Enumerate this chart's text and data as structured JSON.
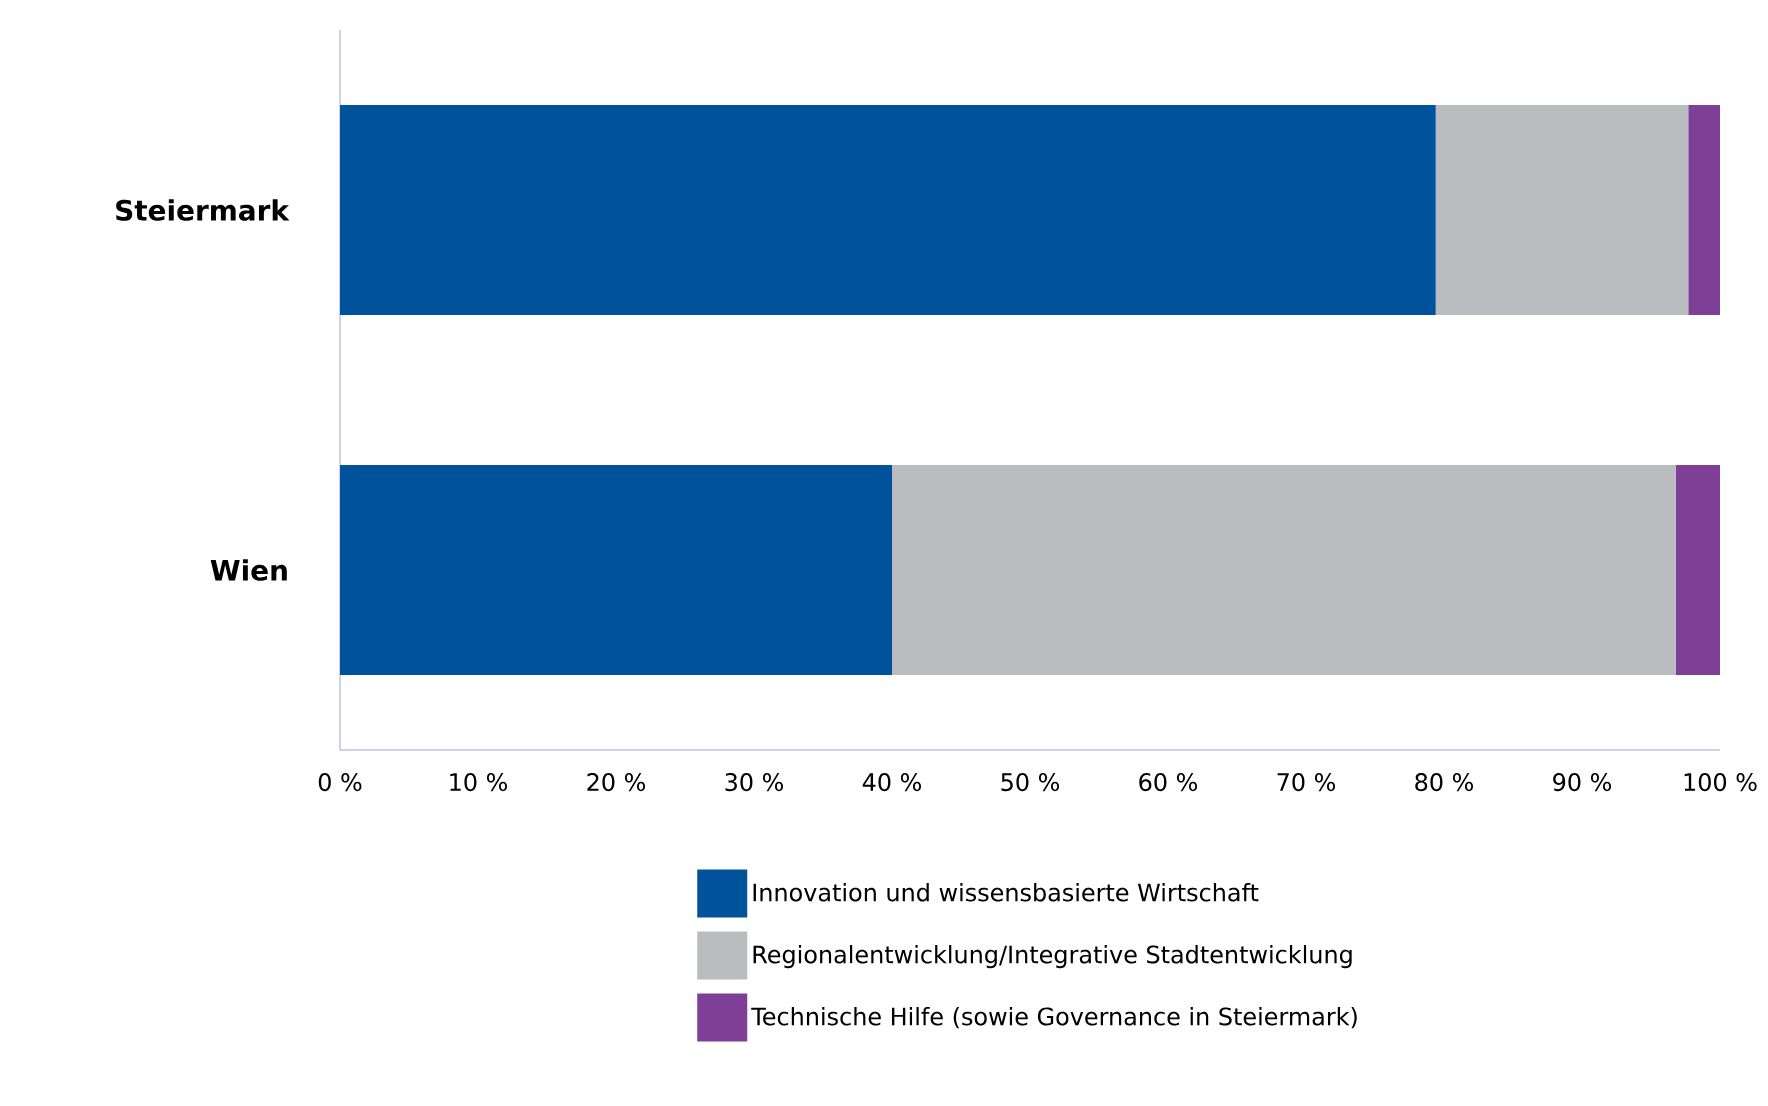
{
  "chart_data": {
    "type": "bar",
    "orientation": "horizontal",
    "stacked": true,
    "categories": [
      "Steiermark",
      "Wien"
    ],
    "series": [
      {
        "name": "Innovation und wissensbasierte Wirtschaft",
        "color": "#00529b",
        "values": [
          79.4,
          40.0
        ]
      },
      {
        "name": "Regionalentwicklung/Integrative Stadtentwicklung",
        "color": "#bbbcc0",
        "values": [
          18.3,
          56.8
        ]
      },
      {
        "name": "Technische Hilfe (sowie Governance in Steiermark)",
        "color": "#7d4096",
        "values": [
          2.3,
          3.2
        ]
      }
    ],
    "xlim": [
      0,
      100
    ],
    "xticks": [
      {
        "value": 0,
        "label": "0 %"
      },
      {
        "value": 10,
        "label": "10 %"
      },
      {
        "value": 20,
        "label": "20 %"
      },
      {
        "value": 30,
        "label": "30 %"
      },
      {
        "value": 40,
        "label": "40 %"
      },
      {
        "value": 50,
        "label": "50 %"
      },
      {
        "value": 60,
        "label": "60 %"
      },
      {
        "value": 70,
        "label": "70 %"
      },
      {
        "value": 80,
        "label": "80 %"
      },
      {
        "value": 90,
        "label": "90 %"
      },
      {
        "value": 100,
        "label": "100 %"
      }
    ],
    "legend": "bottom",
    "grid": false
  }
}
